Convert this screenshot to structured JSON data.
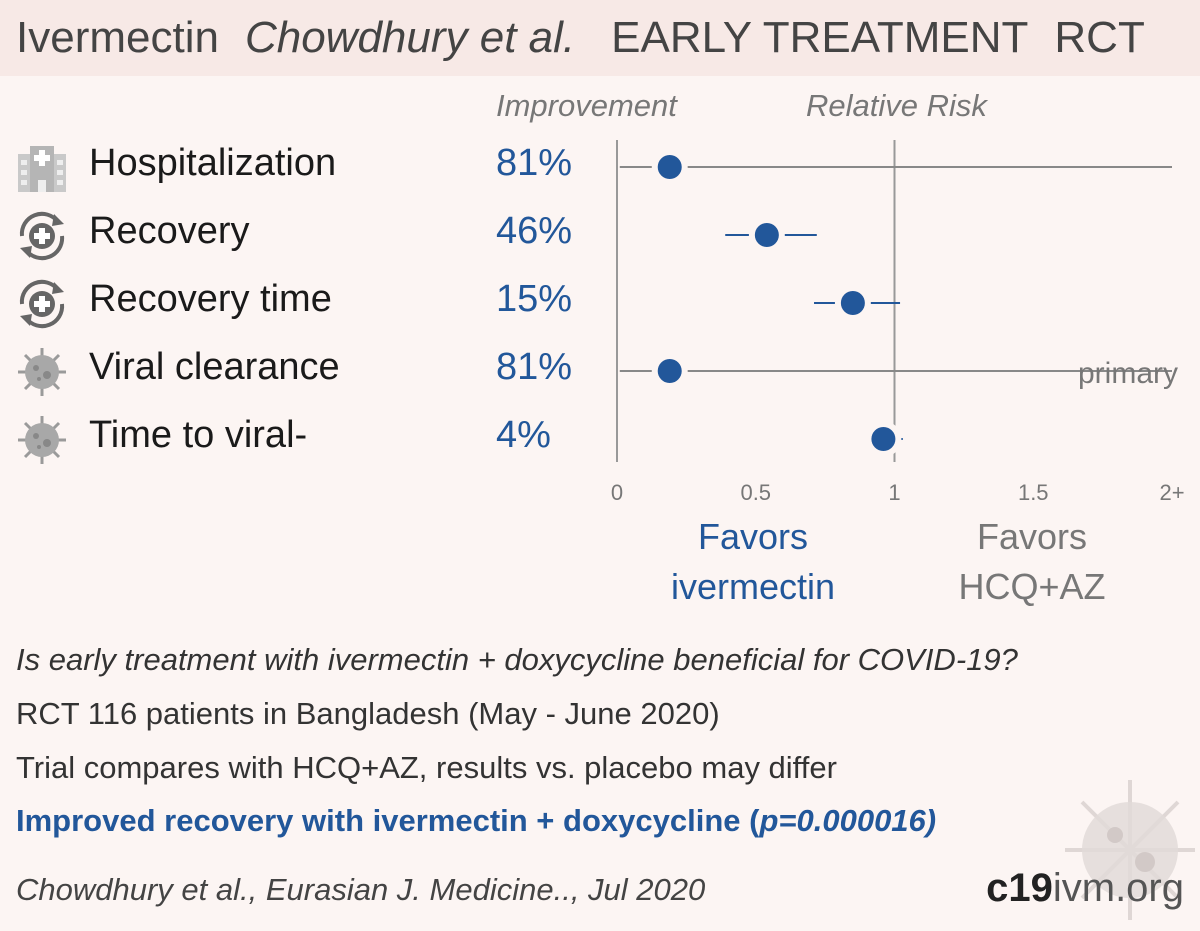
{
  "header": {
    "drug": "Ivermectin",
    "author": "Chowdhury et al.",
    "stage": "EARLY TREATMENT",
    "design": "RCT"
  },
  "columns": {
    "improvement": "Improvement",
    "relative_risk": "Relative Risk"
  },
  "outcomes": [
    {
      "label": "Hospitalization",
      "improvement": "81%",
      "icon": "hospital-icon"
    },
    {
      "label": "Recovery",
      "improvement": "46%",
      "icon": "recovery-icon"
    },
    {
      "label": "Recovery time",
      "improvement": "15%",
      "icon": "recovery-icon"
    },
    {
      "label": "Viral clearance",
      "improvement": "81%",
      "icon": "virus-icon"
    },
    {
      "label": "Time to viral-",
      "improvement": "4%",
      "icon": "virus-icon"
    }
  ],
  "chart_data": {
    "type": "forest",
    "xlabel": "",
    "ylabel": "",
    "xlim": [
      0,
      2
    ],
    "x_ticks": [
      {
        "value": 0,
        "label": "0"
      },
      {
        "value": 0.5,
        "label": "0.5"
      },
      {
        "value": 1,
        "label": "1"
      },
      {
        "value": 1.5,
        "label": "1.5"
      },
      {
        "value": 2,
        "label": "2+"
      }
    ],
    "reference_line": 1,
    "points": [
      {
        "outcome": "Hospitalization",
        "rr": 0.19,
        "ci_low": 0.01,
        "ci_high": 2.0,
        "ci_high_truncated": true
      },
      {
        "outcome": "Recovery",
        "rr": 0.54,
        "ci_low": 0.39,
        "ci_high": 0.72
      },
      {
        "outcome": "Recovery time",
        "rr": 0.85,
        "ci_low": 0.71,
        "ci_high": 1.02
      },
      {
        "outcome": "Viral clearance",
        "rr": 0.19,
        "ci_low": 0.01,
        "ci_high": 2.0,
        "ci_high_truncated": true,
        "annotation": "primary"
      },
      {
        "outcome": "Time to viral-",
        "rr": 0.96,
        "ci_low": 0.9,
        "ci_high": 1.03
      }
    ],
    "favors_left": [
      "Favors",
      "ivermectin"
    ],
    "favors_right": [
      "Favors",
      "HCQ+AZ"
    ],
    "colors": {
      "point": "#22579a",
      "line": "#888888",
      "axis": "#999999"
    }
  },
  "summary": {
    "question": "Is early treatment with ivermectin + doxycycline beneficial for COVID-19?",
    "design": "RCT 116 patients in Bangladesh (May - June 2020)",
    "comparator": "Trial compares with HCQ+AZ, results vs. placebo may differ",
    "result_prefix": "Improved recovery with ivermectin + doxycycline (",
    "result_p": "p",
    "result_pvalue": "=0.000016)",
    "citation": "Chowdhury et al., Eurasian J. Medicine.., Jul 2020"
  },
  "brand": {
    "part1": "c19",
    "part2": "ivm.org"
  }
}
